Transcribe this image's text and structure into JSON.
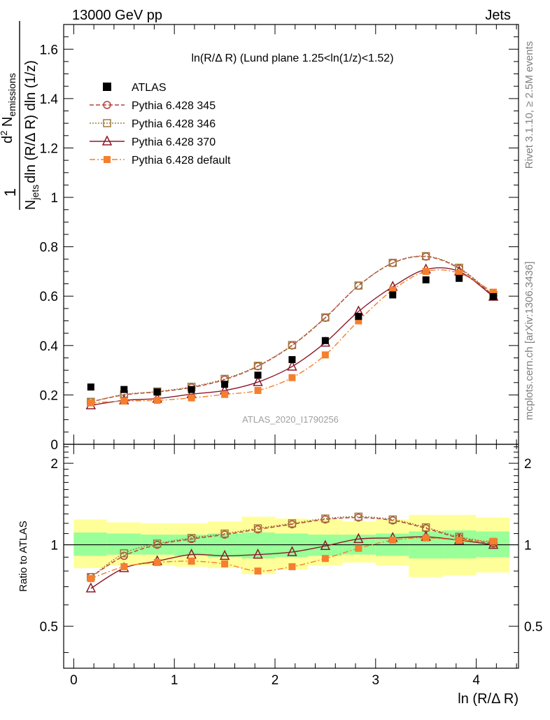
{
  "header": {
    "left": "13000 GeV pp",
    "right": "Jets"
  },
  "side_labels": {
    "rivet": "Rivet 3.1.10, ≥ 2.5M events",
    "mcplots": "mcplots.cern.ch [arXiv:1306.3436]"
  },
  "watermark": "ATLAS_2020_I1790256",
  "main_plot": {
    "title": "ln(R/Δ R) (Lund plane 1.25<ln(1/z)<1.52)",
    "ylabel": "1/(N_jets dln(R/Δ R) dln(1/z)) d²N_emissions",
    "ylabel_parts": {
      "numerator": "1",
      "top_d": "d",
      "top_sup": "2",
      "top_N": " N",
      "top_sub": "emissions",
      "bottom_N": "N",
      "bottom_sub": "jets",
      "bottom_rest": "dln (R/Δ R) dln (1/z)"
    },
    "yticks": [
      "0",
      "0.2",
      "0.4",
      "0.6",
      "0.8",
      "1",
      "1.2",
      "1.4",
      "1.6"
    ]
  },
  "ratio_plot": {
    "ylabel": "Ratio to ATLAS",
    "yticks_left": [
      "0.5",
      "1",
      "2"
    ],
    "yticks_right": [
      "0.5",
      "1",
      "2"
    ]
  },
  "xaxis": {
    "label": "ln (R/Δ R)",
    "ticks": [
      "0",
      "1",
      "2",
      "3",
      "4"
    ]
  },
  "legend": [
    {
      "label": "ATLAS",
      "marker": "square-filled",
      "color": "#000000"
    },
    {
      "label": "Pythia 6.428 345",
      "marker": "circle-open",
      "color": "#b5423f"
    },
    {
      "label": "Pythia 6.428 346",
      "marker": "square-open",
      "color": "#a07a3a"
    },
    {
      "label": "Pythia 6.428 370",
      "marker": "triangle-open",
      "color": "#8b1a2b"
    },
    {
      "label": "Pythia 6.428 default",
      "marker": "square-filled",
      "color": "#f57f2e"
    }
  ],
  "chart_data": {
    "type": "scatter",
    "xlim": [
      -0.1,
      4.42
    ],
    "ylim": [
      0,
      1.7
    ],
    "ratio_ylim": [
      0.35,
      2.35
    ],
    "ratio_log": true,
    "x": [
      0.17,
      0.5,
      0.83,
      1.17,
      1.5,
      1.83,
      2.17,
      2.5,
      2.83,
      3.17,
      3.5,
      3.83,
      4.17
    ],
    "x_edges": [
      0,
      0.33,
      0.67,
      1.0,
      1.33,
      1.67,
      2.0,
      2.33,
      2.67,
      3.0,
      3.33,
      3.67,
      4.0,
      4.33
    ],
    "data": {
      "name": "ATLAS",
      "values": [
        0.232,
        0.222,
        0.212,
        0.222,
        0.243,
        0.28,
        0.343,
        0.42,
        0.518,
        0.605,
        0.666,
        0.672,
        0.598
      ]
    },
    "series": [
      {
        "name": "Pythia 6.428 345",
        "color": "#b5423f",
        "dash": "6,3",
        "marker": "circle-open",
        "values": [
          0.172,
          0.2,
          0.212,
          0.23,
          0.262,
          0.316,
          0.4,
          0.512,
          0.642,
          0.734,
          0.76,
          0.712,
          0.602
        ]
      },
      {
        "name": "Pythia 6.428 346",
        "color": "#a07a3a",
        "dash": "2,2",
        "marker": "square-open",
        "values": [
          0.172,
          0.202,
          0.214,
          0.233,
          0.265,
          0.318,
          0.402,
          0.514,
          0.643,
          0.735,
          0.762,
          0.715,
          0.604
        ]
      },
      {
        "name": "Pythia 6.428 370",
        "color": "#8b1a2b",
        "dash": "",
        "marker": "triangle-open",
        "values": [
          0.158,
          0.178,
          0.185,
          0.203,
          0.218,
          0.252,
          0.315,
          0.412,
          0.538,
          0.638,
          0.708,
          0.7,
          0.598
        ]
      },
      {
        "name": "Pythia 6.428 default",
        "color": "#f57f2e",
        "dash": "8,3,2,3",
        "marker": "square-filled",
        "values": [
          0.168,
          0.175,
          0.178,
          0.188,
          0.202,
          0.218,
          0.27,
          0.362,
          0.5,
          0.625,
          0.7,
          0.693,
          0.616
        ]
      }
    ],
    "ratio_series": [
      {
        "name": "Pythia 6.428 345",
        "values": [
          0.76,
          0.91,
          1.0,
          1.05,
          1.09,
          1.14,
          1.19,
          1.24,
          1.26,
          1.23,
          1.15,
          1.06,
          1.01
        ]
      },
      {
        "name": "Pythia 6.428 346",
        "values": [
          0.76,
          0.93,
          1.01,
          1.06,
          1.1,
          1.15,
          1.2,
          1.25,
          1.27,
          1.24,
          1.16,
          1.07,
          1.02
        ]
      },
      {
        "name": "Pythia 6.428 370",
        "values": [
          0.69,
          0.82,
          0.87,
          0.92,
          0.91,
          0.92,
          0.94,
          0.99,
          1.05,
          1.06,
          1.07,
          1.04,
          1.0
        ]
      },
      {
        "name": "Pythia 6.428 default",
        "values": [
          0.75,
          0.83,
          0.86,
          0.87,
          0.85,
          0.8,
          0.83,
          0.89,
          0.97,
          1.04,
          1.06,
          1.04,
          1.03
        ]
      }
    ],
    "ratio_band_inner": [
      [
        0.91,
        1.11
      ],
      [
        0.92,
        1.1
      ],
      [
        0.92,
        1.09
      ],
      [
        0.91,
        1.09
      ],
      [
        0.9,
        1.1
      ],
      [
        0.89,
        1.11
      ],
      [
        0.9,
        1.1
      ],
      [
        0.91,
        1.09
      ],
      [
        0.92,
        1.09
      ],
      [
        0.91,
        1.1
      ],
      [
        0.89,
        1.12
      ],
      [
        0.89,
        1.13
      ],
      [
        0.9,
        1.12
      ]
    ],
    "ratio_band_outer": [
      [
        0.82,
        1.24
      ],
      [
        0.84,
        1.21
      ],
      [
        0.84,
        1.2
      ],
      [
        0.83,
        1.2
      ],
      [
        0.82,
        1.22
      ],
      [
        0.78,
        1.27
      ],
      [
        0.81,
        1.25
      ],
      [
        0.84,
        1.24
      ],
      [
        0.86,
        1.22
      ],
      [
        0.84,
        1.24
      ],
      [
        0.76,
        1.29
      ],
      [
        0.77,
        1.29
      ],
      [
        0.79,
        1.26
      ]
    ]
  }
}
